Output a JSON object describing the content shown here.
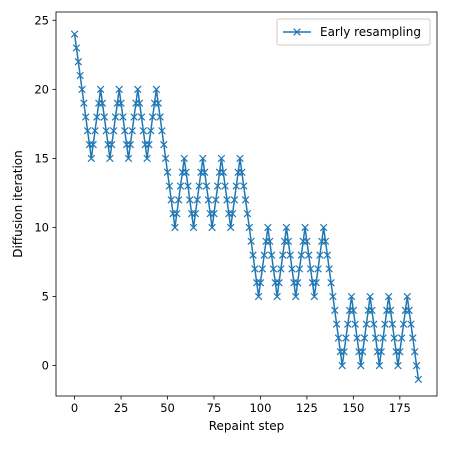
{
  "chart_data": {
    "type": "line",
    "xlabel": "Repaint step",
    "ylabel": "Diffusion iteration",
    "xlim": [
      -10,
      195
    ],
    "ylim": [
      -2.2,
      25.6
    ],
    "xticks": [
      0,
      25,
      50,
      75,
      100,
      125,
      150,
      175
    ],
    "yticks": [
      0,
      5,
      10,
      15,
      20,
      25
    ],
    "grid": false,
    "legend_position": "upper-right",
    "marker": "x",
    "series_color": "#1f77b4",
    "series": [
      {
        "name": "Early resampling",
        "values": [
          24,
          23,
          22,
          21,
          20,
          19,
          18,
          17,
          16,
          15,
          16,
          17,
          18,
          19,
          20,
          19,
          18,
          17,
          16,
          15,
          16,
          17,
          18,
          19,
          20,
          19,
          18,
          17,
          16,
          15,
          16,
          17,
          18,
          19,
          20,
          19,
          18,
          17,
          16,
          15,
          16,
          17,
          18,
          19,
          20,
          19,
          18,
          17,
          16,
          15,
          14,
          13,
          12,
          11,
          10,
          11,
          12,
          13,
          14,
          15,
          14,
          13,
          12,
          11,
          10,
          11,
          12,
          13,
          14,
          15,
          14,
          13,
          12,
          11,
          10,
          11,
          12,
          13,
          14,
          15,
          14,
          13,
          12,
          11,
          10,
          11,
          12,
          13,
          14,
          15,
          14,
          13,
          12,
          11,
          10,
          9,
          8,
          7,
          6,
          5,
          6,
          7,
          8,
          9,
          10,
          9,
          8,
          7,
          6,
          5,
          6,
          7,
          8,
          9,
          10,
          9,
          8,
          7,
          6,
          5,
          6,
          7,
          8,
          9,
          10,
          9,
          8,
          7,
          6,
          5,
          6,
          7,
          8,
          9,
          10,
          9,
          8,
          7,
          6,
          5,
          4,
          3,
          2,
          1,
          0,
          1,
          2,
          3,
          4,
          5,
          4,
          3,
          2,
          1,
          0,
          1,
          2,
          3,
          4,
          5,
          4,
          3,
          2,
          1,
          0,
          1,
          2,
          3,
          4,
          5,
          4,
          3,
          2,
          1,
          0,
          1,
          2,
          3,
          4,
          5,
          4,
          3,
          2,
          1,
          0,
          -1
        ]
      }
    ]
  }
}
